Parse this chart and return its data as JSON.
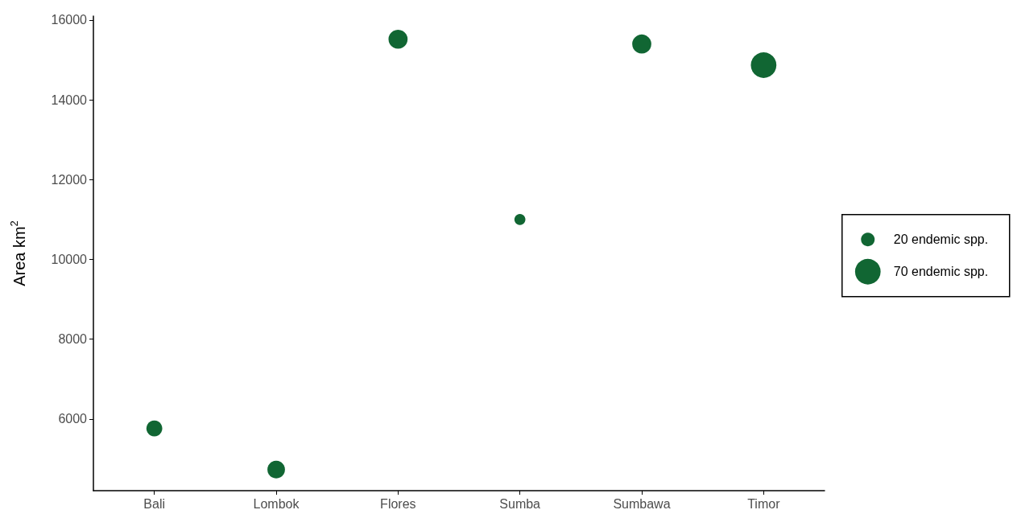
{
  "chart_data": {
    "type": "bubble",
    "ylabel": "Area km$^{2}$",
    "categories": [
      "Bali",
      "Lombok",
      "Flores",
      "Sumba",
      "Sumbawa",
      "Timor"
    ],
    "values": [
      5760,
      4730,
      15520,
      11000,
      15400,
      14870
    ],
    "sizes": [
      27,
      33,
      39,
      13,
      39,
      70
    ],
    "size_legend": [
      {
        "value": 20,
        "label": "20 endemic spp."
      },
      {
        "value": 70,
        "label": "70 endemic spp."
      }
    ],
    "color": "#116633",
    "ylim": [
      4200,
      16100
    ],
    "yticks": [
      6000,
      8000,
      10000,
      12000,
      14000,
      16000
    ],
    "grid": false
  }
}
